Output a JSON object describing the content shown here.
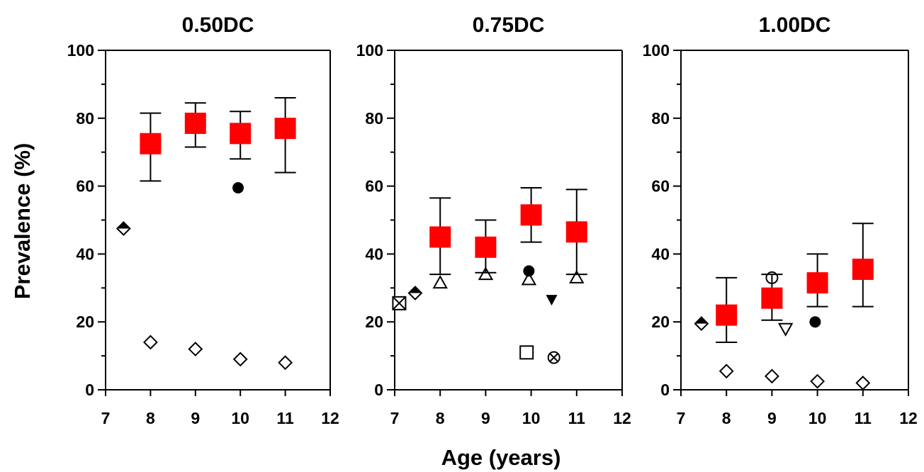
{
  "figure": {
    "xlabel": "Age (years)",
    "ylabel": "Prevalence (%)"
  },
  "chart_data": [
    {
      "type": "scatter",
      "title": "0.50DC",
      "xlim": [
        7,
        12
      ],
      "ylim": [
        0,
        100
      ],
      "xticks": [
        7,
        8,
        9,
        10,
        11,
        12
      ],
      "yticks": [
        0,
        20,
        40,
        60,
        80,
        100
      ],
      "grid": false,
      "series": [
        {
          "marker": "filled-square",
          "color": "#ff0000",
          "points": [
            {
              "x": 8,
              "y": 72.5,
              "yerr_low": 61.5,
              "yerr_high": 81.5
            },
            {
              "x": 9,
              "y": 78.5,
              "yerr_low": 71.5,
              "yerr_high": 84.5
            },
            {
              "x": 10,
              "y": 75.5,
              "yerr_low": 68,
              "yerr_high": 82
            },
            {
              "x": 11,
              "y": 77,
              "yerr_low": 64,
              "yerr_high": 86
            }
          ]
        },
        {
          "marker": "half-filled-diamond",
          "color": "#000000",
          "points": [
            {
              "x": 7.4,
              "y": 47.5
            }
          ]
        },
        {
          "marker": "filled-circle",
          "color": "#000000",
          "points": [
            {
              "x": 9.95,
              "y": 59.5
            }
          ]
        },
        {
          "marker": "open-diamond",
          "color": "#000000",
          "points": [
            {
              "x": 8,
              "y": 14
            },
            {
              "x": 9,
              "y": 12
            },
            {
              "x": 10,
              "y": 9
            },
            {
              "x": 11,
              "y": 8
            }
          ]
        }
      ]
    },
    {
      "type": "scatter",
      "title": "0.75DC",
      "xlim": [
        7,
        12
      ],
      "ylim": [
        0,
        100
      ],
      "xticks": [
        7,
        8,
        9,
        10,
        11,
        12
      ],
      "yticks": [
        0,
        20,
        40,
        60,
        80,
        100
      ],
      "grid": false,
      "series": [
        {
          "marker": "filled-square",
          "color": "#ff0000",
          "points": [
            {
              "x": 8,
              "y": 45,
              "yerr_low": 34,
              "yerr_high": 56.5
            },
            {
              "x": 9,
              "y": 42,
              "yerr_low": 34.5,
              "yerr_high": 50
            },
            {
              "x": 10,
              "y": 51.5,
              "yerr_low": 43.5,
              "yerr_high": 59.5
            },
            {
              "x": 11,
              "y": 46.5,
              "yerr_low": 34,
              "yerr_high": 59
            }
          ]
        },
        {
          "marker": "crossed-square",
          "color": "#000000",
          "points": [
            {
              "x": 7.1,
              "y": 25.5
            }
          ]
        },
        {
          "marker": "half-filled-diamond",
          "color": "#000000",
          "points": [
            {
              "x": 7.45,
              "y": 28.5
            }
          ]
        },
        {
          "marker": "open-triangle-up",
          "color": "#000000",
          "points": [
            {
              "x": 8,
              "y": 31.5
            },
            {
              "x": 9,
              "y": 34
            },
            {
              "x": 9.95,
              "y": 32.5
            },
            {
              "x": 11,
              "y": 33
            }
          ]
        },
        {
          "marker": "filled-circle",
          "color": "#000000",
          "points": [
            {
              "x": 9.95,
              "y": 35
            }
          ]
        },
        {
          "marker": "filled-triangle-down",
          "color": "#000000",
          "points": [
            {
              "x": 10.45,
              "y": 26.5
            }
          ]
        },
        {
          "marker": "open-square",
          "color": "#000000",
          "points": [
            {
              "x": 9.9,
              "y": 11
            }
          ]
        },
        {
          "marker": "circled-x",
          "color": "#000000",
          "points": [
            {
              "x": 10.5,
              "y": 9.5
            }
          ]
        }
      ]
    },
    {
      "type": "scatter",
      "title": "1.00DC",
      "xlim": [
        7,
        12
      ],
      "ylim": [
        0,
        100
      ],
      "xticks": [
        7,
        8,
        9,
        10,
        11,
        12
      ],
      "yticks": [
        0,
        20,
        40,
        60,
        80,
        100
      ],
      "grid": false,
      "series": [
        {
          "marker": "filled-square",
          "color": "#ff0000",
          "points": [
            {
              "x": 8,
              "y": 22,
              "yerr_low": 14,
              "yerr_high": 33
            },
            {
              "x": 9,
              "y": 27,
              "yerr_low": 20.5,
              "yerr_high": 34
            },
            {
              "x": 10,
              "y": 31.5,
              "yerr_low": 24.5,
              "yerr_high": 40
            },
            {
              "x": 11,
              "y": 35.5,
              "yerr_low": 24.5,
              "yerr_high": 49
            }
          ]
        },
        {
          "marker": "half-filled-diamond",
          "color": "#000000",
          "points": [
            {
              "x": 7.45,
              "y": 19.5
            }
          ]
        },
        {
          "marker": "open-circle",
          "color": "#000000",
          "points": [
            {
              "x": 9,
              "y": 33
            }
          ]
        },
        {
          "marker": "open-triangle-down",
          "color": "#000000",
          "points": [
            {
              "x": 9.3,
              "y": 18
            }
          ]
        },
        {
          "marker": "filled-circle",
          "color": "#000000",
          "points": [
            {
              "x": 9.95,
              "y": 20
            }
          ]
        },
        {
          "marker": "open-diamond",
          "color": "#000000",
          "points": [
            {
              "x": 8,
              "y": 5.5
            },
            {
              "x": 9,
              "y": 4
            },
            {
              "x": 10,
              "y": 2.5
            },
            {
              "x": 11,
              "y": 2
            }
          ]
        }
      ]
    }
  ]
}
